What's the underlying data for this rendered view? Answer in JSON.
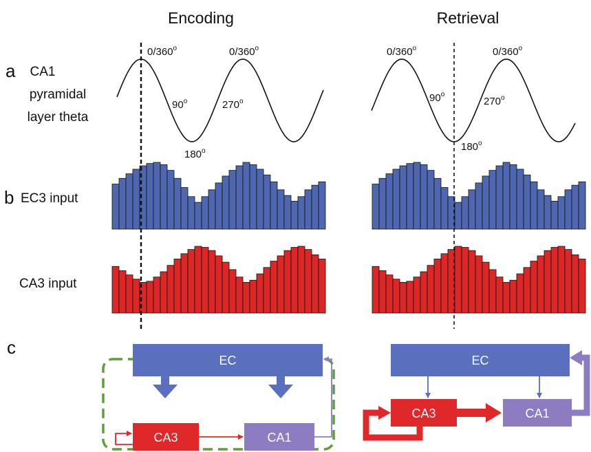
{
  "titles": {
    "encoding": "Encoding",
    "retrieval": "Retrieval"
  },
  "panel_letters": {
    "a": "a",
    "b": "b",
    "c": "c"
  },
  "row_labels": {
    "theta_line1": "CA1",
    "theta_line2": "pyramidal",
    "theta_line3": "layer theta",
    "ec3": "EC3 input",
    "ca3": "CA3 input"
  },
  "phase_labels": {
    "encoding": {
      "peak1": "0/360",
      "peak2": "0/360",
      "p90": "90",
      "p180": "180",
      "p270": "270"
    },
    "retrieval": {
      "peak1": "0/360",
      "peak2": "0/360",
      "p90": "90",
      "p180": "180",
      "p270": "270"
    },
    "degree_mark": "o"
  },
  "circuit": {
    "ec": "EC",
    "ca3": "CA3",
    "ca1": "CA1"
  },
  "colors": {
    "ec3_input": "#4F67B1",
    "ca3_input": "#DD2626",
    "ec_box": "#5A6FBD",
    "ca3_box": "#E0272A",
    "ca1_box": "#8E7CC3",
    "outline": "#5F9E3A"
  },
  "chart_data": {
    "type": "bar",
    "series": [
      {
        "name": "EC3 input",
        "panel": "Encoding",
        "values": [
          0.62,
          0.72,
          0.8,
          0.88,
          0.94,
          0.98,
          1.0,
          0.96,
          0.86,
          0.72,
          0.56,
          0.4,
          0.3,
          0.4,
          0.52,
          0.64,
          0.76,
          0.86,
          0.94,
          1.0,
          0.96,
          0.88,
          0.78,
          0.66,
          0.52,
          0.42,
          0.32,
          0.4,
          0.52,
          0.6,
          0.66
        ]
      },
      {
        "name": "CA3 input",
        "panel": "Encoding",
        "values": [
          0.62,
          0.54,
          0.46,
          0.38,
          0.32,
          0.34,
          0.42,
          0.52,
          0.64,
          0.76,
          0.86,
          0.94,
          1.0,
          0.98,
          0.92,
          0.82,
          0.7,
          0.56,
          0.42,
          0.32,
          0.36,
          0.48,
          0.6,
          0.72,
          0.82,
          0.92,
          0.98,
          1.0,
          0.94,
          0.84,
          0.76
        ]
      },
      {
        "name": "EC3 input",
        "panel": "Retrieval",
        "values": [
          0.62,
          0.72,
          0.8,
          0.88,
          0.94,
          0.98,
          1.0,
          0.96,
          0.86,
          0.72,
          0.56,
          0.4,
          0.3,
          0.4,
          0.52,
          0.64,
          0.76,
          0.86,
          0.94,
          1.0,
          0.96,
          0.88,
          0.78,
          0.66,
          0.52,
          0.42,
          0.32,
          0.4,
          0.52,
          0.6,
          0.66
        ]
      },
      {
        "name": "CA3 input",
        "panel": "Retrieval",
        "values": [
          0.62,
          0.54,
          0.46,
          0.38,
          0.32,
          0.34,
          0.42,
          0.52,
          0.64,
          0.76,
          0.86,
          0.94,
          1.0,
          0.98,
          0.92,
          0.82,
          0.7,
          0.56,
          0.42,
          0.32,
          0.36,
          0.48,
          0.6,
          0.72,
          0.82,
          0.92,
          0.98,
          1.0,
          0.94,
          0.84,
          0.76
        ]
      }
    ]
  }
}
